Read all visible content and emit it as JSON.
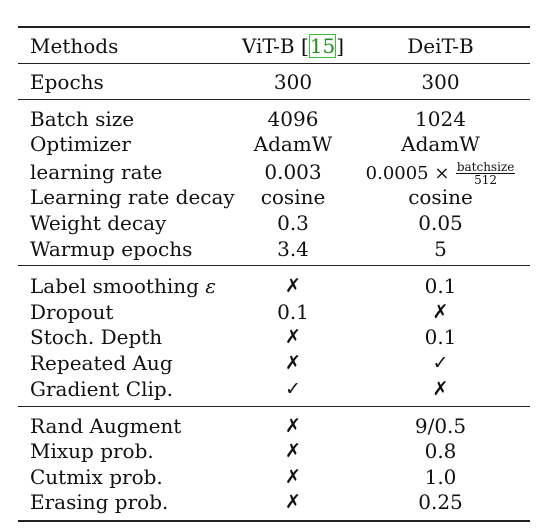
{
  "header": {
    "methods": "Methods",
    "vit": "ViT-B",
    "vit_ref_open": "[",
    "vit_ref": "15",
    "vit_ref_close": "]",
    "deit": "DeiT-B"
  },
  "epochs": {
    "label": "Epochs",
    "vit": "300",
    "deit": "300"
  },
  "optim": {
    "batch_size": {
      "label": "Batch size",
      "vit": "4096",
      "deit": "1024"
    },
    "optimizer": {
      "label": "Optimizer",
      "vit": "AdamW",
      "deit": "AdamW"
    },
    "lr": {
      "label": "learning rate",
      "vit": "0.003",
      "deit_prefix": "0.0005 ×",
      "deit_num": "batchsize",
      "deit_den": "512"
    },
    "lr_decay": {
      "label": "Learning rate decay",
      "vit": "cosine",
      "deit": "cosine"
    },
    "weight_decay": {
      "label": "Weight decay",
      "vit": "0.3",
      "deit": "0.05"
    },
    "warmup": {
      "label": "Warmup epochs",
      "vit": "3.4",
      "deit": "5"
    }
  },
  "reg": {
    "label_smoothing": {
      "label": "Label smoothing",
      "symbol": "ε",
      "vit": "✗",
      "deit": "0.1"
    },
    "dropout": {
      "label": "Dropout",
      "vit": "0.1",
      "deit": "✗"
    },
    "stoch_depth": {
      "label": "Stoch. Depth",
      "vit": "✗",
      "deit": "0.1"
    },
    "repeated_aug": {
      "label": "Repeated Aug",
      "vit": "✗",
      "deit": "✓"
    },
    "grad_clip": {
      "label": "Gradient Clip.",
      "vit": "✓",
      "deit": "✗"
    }
  },
  "aug": {
    "rand_augment": {
      "label": "Rand Augment",
      "vit": "✗",
      "deit": "9/0.5"
    },
    "mixup": {
      "label": "Mixup prob.",
      "vit": "✗",
      "deit": "0.8"
    },
    "cutmix": {
      "label": "Cutmix prob.",
      "vit": "✗",
      "deit": "1.0"
    },
    "erasing": {
      "label": "Erasing prob.",
      "vit": "✗",
      "deit": "0.25"
    }
  }
}
